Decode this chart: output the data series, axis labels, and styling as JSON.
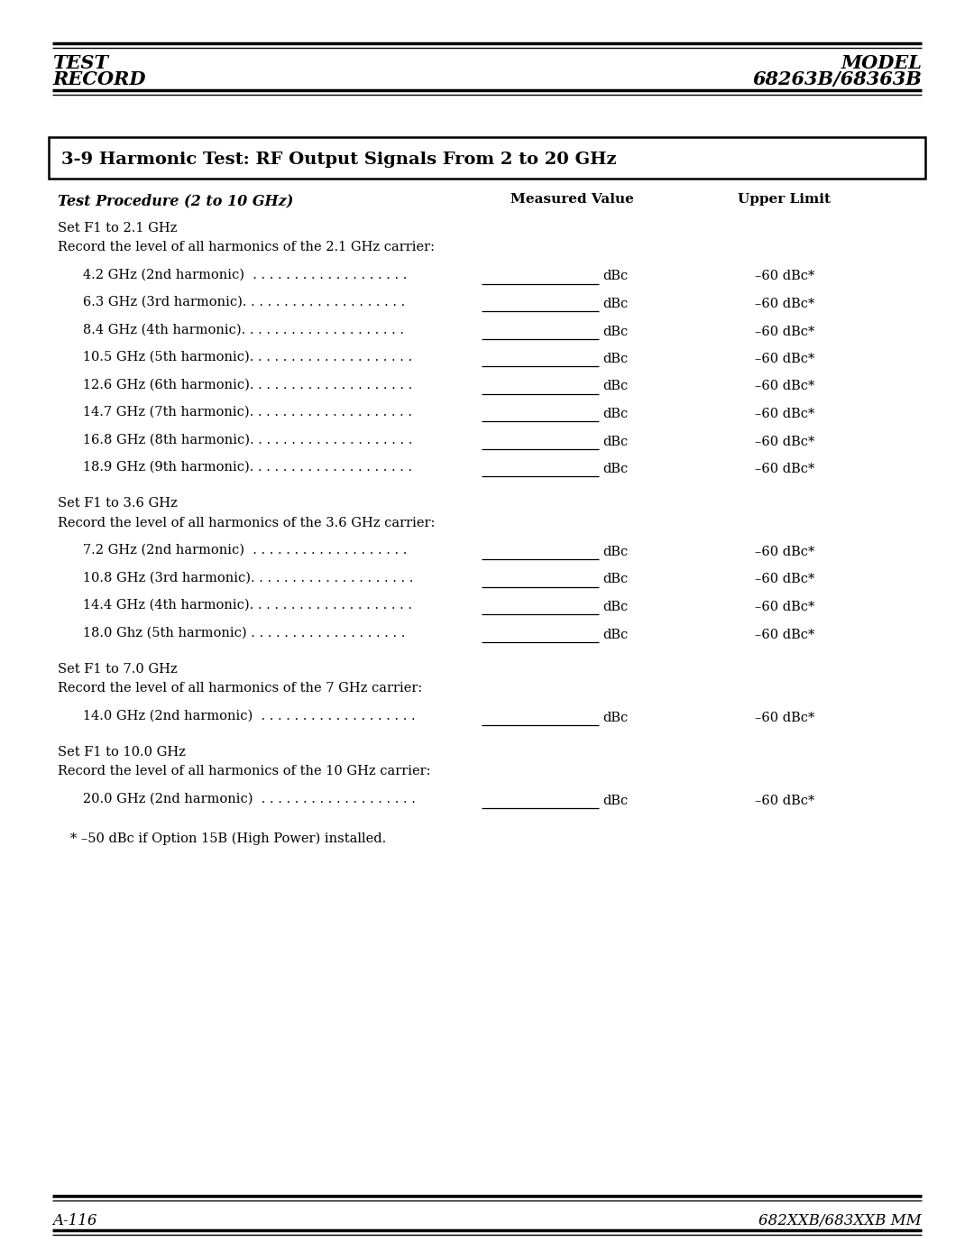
{
  "footer_left": "A-116",
  "footer_right": "682XXB/683XXB MM",
  "section_title": "3-9 Harmonic Test: RF Output Signals From 2 to 20 GHz",
  "col_header_procedure": "Test Procedure (2 to 10 GHz)",
  "col_header_measured": "Measured Value",
  "col_header_upper": "Upper Limit",
  "groups": [
    {
      "set_line1": "Set F1 to 2.1 GHz",
      "set_line2": "Record the level of all harmonics of the 2.1 GHz carrier:",
      "rows": [
        {
          "label": "   4.2 GHz (2nd harmonic)  . . . . . . . . . . . . . . . . . . .",
          "upper": "–60 dBc*"
        },
        {
          "label": "   6.3 GHz (3rd harmonic). . . . . . . . . . . . . . . . . . . .",
          "upper": "–60 dBc*"
        },
        {
          "label": "   8.4 GHz (4th harmonic). . . . . . . . . . . . . . . . . . . .",
          "upper": "–60 dBc*"
        },
        {
          "label": "   10.5 GHz (5th harmonic). . . . . . . . . . . . . . . . . . . .",
          "upper": "–60 dBc*"
        },
        {
          "label": "   12.6 GHz (6th harmonic). . . . . . . . . . . . . . . . . . . .",
          "upper": "–60 dBc*"
        },
        {
          "label": "   14.7 GHz (7th harmonic). . . . . . . . . . . . . . . . . . . .",
          "upper": "–60 dBc*"
        },
        {
          "label": "   16.8 GHz (8th harmonic). . . . . . . . . . . . . . . . . . . .",
          "upper": "–60 dBc*"
        },
        {
          "label": "   18.9 GHz (9th harmonic). . . . . . . . . . . . . . . . . . . .",
          "upper": "–60 dBc*"
        }
      ]
    },
    {
      "set_line1": "Set F1 to 3.6 GHz",
      "set_line2": "Record the level of all harmonics of the 3.6 GHz carrier:",
      "rows": [
        {
          "label": "   7.2 GHz (2nd harmonic)  . . . . . . . . . . . . . . . . . . .",
          "upper": "–60 dBc*"
        },
        {
          "label": "   10.8 GHz (3rd harmonic). . . . . . . . . . . . . . . . . . . .",
          "upper": "–60 dBc*"
        },
        {
          "label": "   14.4 GHz (4th harmonic). . . . . . . . . . . . . . . . . . . .",
          "upper": "–60 dBc*"
        },
        {
          "label": "   18.0 Ghz (5th harmonic) . . . . . . . . . . . . . . . . . . .",
          "upper": "–60 dBc*"
        }
      ]
    },
    {
      "set_line1": "Set F1 to 7.0 GHz",
      "set_line2": "Record the level of all harmonics of the 7 GHz carrier:",
      "rows": [
        {
          "label": "   14.0 GHz (2nd harmonic)  . . . . . . . . . . . . . . . . . . .",
          "upper": "–60 dBc*"
        }
      ]
    },
    {
      "set_line1": "Set F1 to 10.0 GHz",
      "set_line2": "Record the level of all harmonics of the 10 GHz carrier:",
      "rows": [
        {
          "label": "   20.0 GHz (2nd harmonic)  . . . . . . . . . . . . . . . . . . .",
          "upper": "–60 dBc*"
        }
      ]
    }
  ],
  "footnote": "   * –50 dBc if Option 15B (High Power) installed.",
  "bg_color": "#ffffff",
  "text_color": "#000000",
  "font_family": "DejaVu Serif"
}
